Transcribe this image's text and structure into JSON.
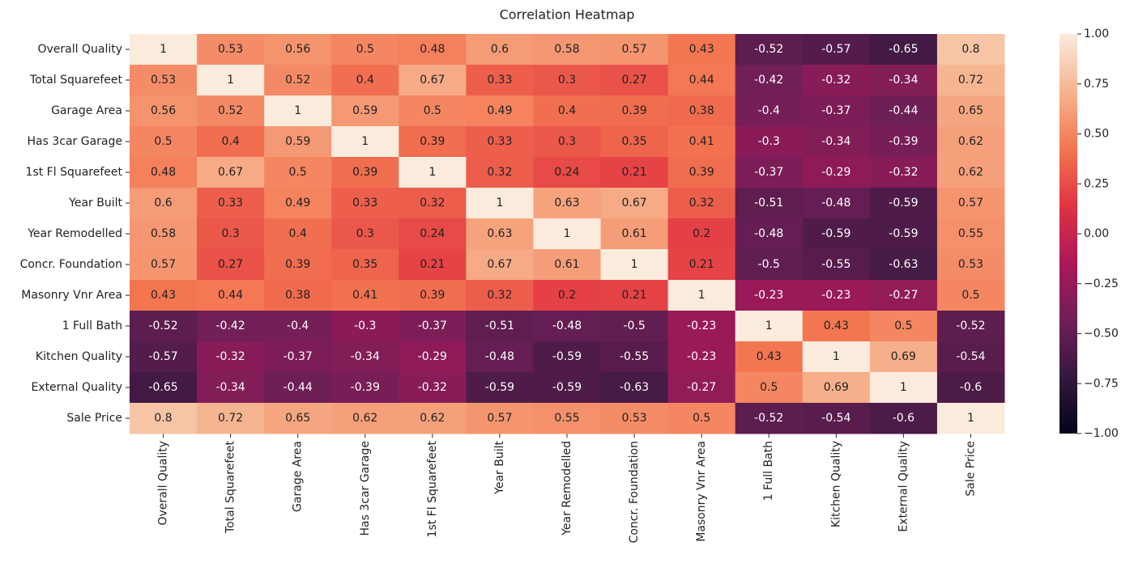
{
  "chart_data": {
    "type": "heatmap",
    "title": "Correlation Heatmap",
    "x_categories": [
      "Overall Quality",
      "Total Squarefeet",
      "Garage Area",
      "Has 3car Garage",
      "1st Fl Squarefeet",
      "Year Built",
      "Year Remodelled",
      "Concr. Foundation",
      "Masonry Vnr Area",
      "1 Full Bath",
      "Kitchen Quality",
      "External Quality",
      "Sale Price"
    ],
    "y_categories": [
      "Overall Quality",
      "Total Squarefeet",
      "Garage Area",
      "Has 3car Garage",
      "1st Fl Squarefeet",
      "Year Built",
      "Year Remodelled",
      "Concr. Foundation",
      "Masonry Vnr Area",
      "1 Full Bath",
      "Kitchen Quality",
      "External Quality",
      "Sale Price"
    ],
    "values": [
      [
        1,
        0.53,
        0.56,
        0.5,
        0.48,
        0.6,
        0.58,
        0.57,
        0.43,
        -0.52,
        -0.57,
        -0.65,
        0.8
      ],
      [
        0.53,
        1,
        0.52,
        0.4,
        0.67,
        0.33,
        0.3,
        0.27,
        0.44,
        -0.42,
        -0.32,
        -0.34,
        0.72
      ],
      [
        0.56,
        0.52,
        1,
        0.59,
        0.5,
        0.49,
        0.4,
        0.39,
        0.38,
        -0.4,
        -0.37,
        -0.44,
        0.65
      ],
      [
        0.5,
        0.4,
        0.59,
        1,
        0.39,
        0.33,
        0.3,
        0.35,
        0.41,
        -0.3,
        -0.34,
        -0.39,
        0.62
      ],
      [
        0.48,
        0.67,
        0.5,
        0.39,
        1,
        0.32,
        0.24,
        0.21,
        0.39,
        -0.37,
        -0.29,
        -0.32,
        0.62
      ],
      [
        0.6,
        0.33,
        0.49,
        0.33,
        0.32,
        1,
        0.63,
        0.67,
        0.32,
        -0.51,
        -0.48,
        -0.59,
        0.57
      ],
      [
        0.58,
        0.3,
        0.4,
        0.3,
        0.24,
        0.63,
        1,
        0.61,
        0.2,
        -0.48,
        -0.59,
        -0.59,
        0.55
      ],
      [
        0.57,
        0.27,
        0.39,
        0.35,
        0.21,
        0.67,
        0.61,
        1,
        0.21,
        -0.5,
        -0.55,
        -0.63,
        0.53
      ],
      [
        0.43,
        0.44,
        0.38,
        0.41,
        0.39,
        0.32,
        0.2,
        0.21,
        1,
        -0.23,
        -0.23,
        -0.27,
        0.5
      ],
      [
        -0.52,
        -0.42,
        -0.4,
        -0.3,
        -0.37,
        -0.51,
        -0.48,
        -0.5,
        -0.23,
        1,
        0.43,
        0.5,
        -0.52
      ],
      [
        -0.57,
        -0.32,
        -0.37,
        -0.34,
        -0.29,
        -0.48,
        -0.59,
        -0.55,
        -0.23,
        0.43,
        1,
        0.69,
        -0.54
      ],
      [
        -0.65,
        -0.34,
        -0.44,
        -0.39,
        -0.32,
        -0.59,
        -0.59,
        -0.63,
        -0.27,
        0.5,
        0.69,
        1,
        -0.6
      ],
      [
        0.8,
        0.72,
        0.65,
        0.62,
        0.62,
        0.57,
        0.55,
        0.53,
        0.5,
        -0.52,
        -0.54,
        -0.6,
        1
      ]
    ],
    "zlim": [
      -1,
      1
    ],
    "zticks": [
      {
        "value": 1,
        "label": "1.00"
      },
      {
        "value": 0.75,
        "label": "0.75"
      },
      {
        "value": 0.5,
        "label": "0.50"
      },
      {
        "value": 0.25,
        "label": "0.25"
      },
      {
        "value": 0,
        "label": "0.00"
      },
      {
        "value": -0.25,
        "label": "−0.25"
      },
      {
        "value": -0.5,
        "label": "−0.50"
      },
      {
        "value": -0.75,
        "label": "−0.75"
      },
      {
        "value": -1,
        "label": "−1.00"
      }
    ],
    "colormap": [
      "#03051a",
      "#35193e",
      "#701f57",
      "#ad1759",
      "#e13342",
      "#f37651",
      "#f6b48f",
      "#faebdd"
    ]
  }
}
